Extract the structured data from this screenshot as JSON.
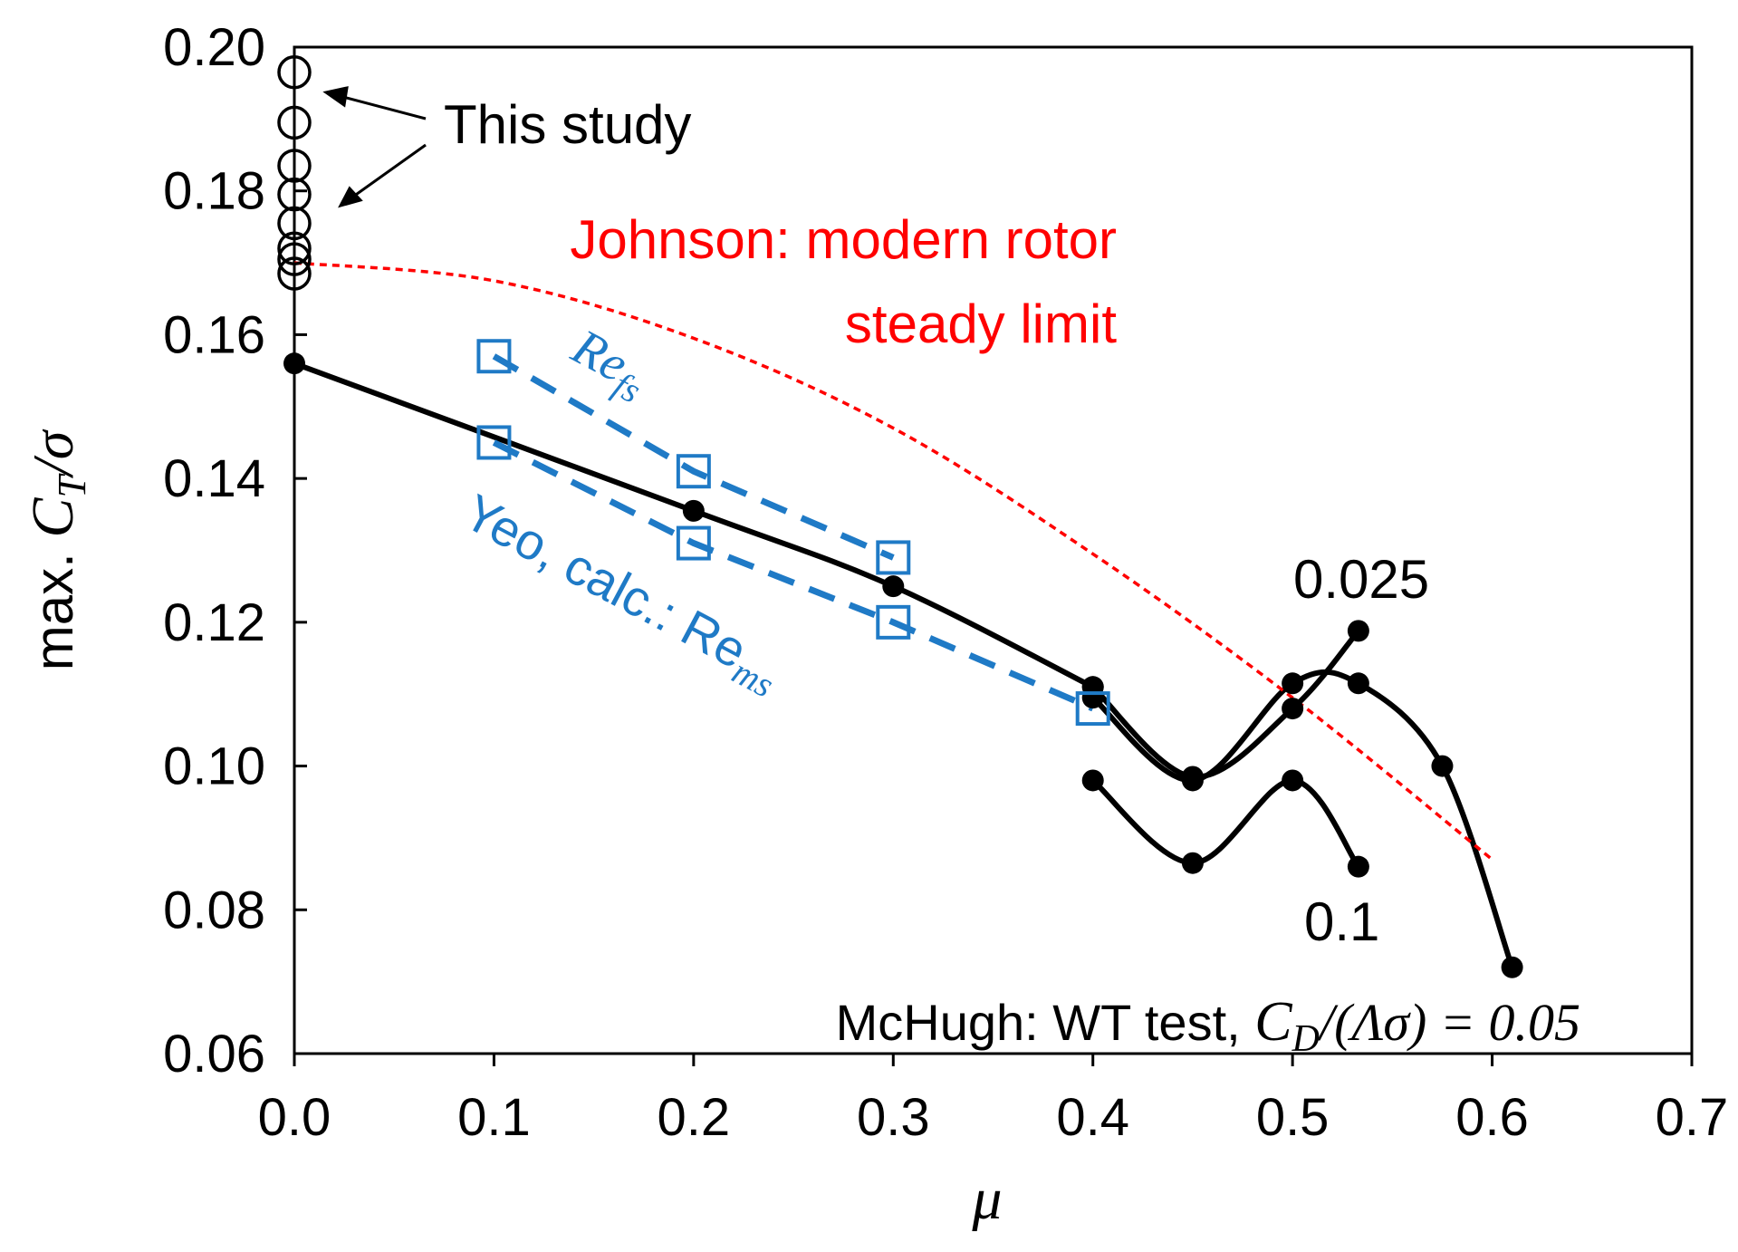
{
  "chart_data": {
    "type": "line",
    "xlabel": "μ",
    "ylabel": "max. C_T/σ",
    "xlim": [
      0.0,
      0.7
    ],
    "ylim": [
      0.06,
      0.2
    ],
    "xticks": [
      "0.0",
      "0.1",
      "0.2",
      "0.3",
      "0.4",
      "0.5",
      "0.6",
      "0.7"
    ],
    "yticks": [
      "0.06",
      "0.08",
      "0.10",
      "0.12",
      "0.14",
      "0.16",
      "0.18",
      "0.20"
    ],
    "grid": false,
    "series": [
      {
        "label": "McHugh main",
        "style": "black-solid-filled-circle",
        "color": "#000000",
        "points": [
          [
            0.0,
            0.156
          ],
          [
            0.2,
            0.1355
          ],
          [
            0.3,
            0.125
          ],
          [
            0.4,
            0.111
          ]
        ]
      },
      {
        "label": "0.025",
        "style": "black-solid-filled-circle",
        "color": "#000000",
        "points": [
          [
            0.4,
            0.111
          ],
          [
            0.45,
            0.0985
          ],
          [
            0.5,
            0.108
          ],
          [
            0.533,
            0.1188
          ]
        ]
      },
      {
        "label": "0.05",
        "style": "black-solid-filled-circle",
        "color": "#000000",
        "points": [
          [
            0.4,
            0.1095
          ],
          [
            0.45,
            0.098
          ],
          [
            0.5,
            0.1115
          ],
          [
            0.533,
            0.1115
          ],
          [
            0.575,
            0.1
          ],
          [
            0.61,
            0.072
          ]
        ]
      },
      {
        "label": "0.1",
        "style": "black-solid-filled-circle",
        "color": "#000000",
        "points": [
          [
            0.4,
            0.098
          ],
          [
            0.45,
            0.0865
          ],
          [
            0.5,
            0.098
          ],
          [
            0.533,
            0.086
          ]
        ]
      },
      {
        "label": "Yeo Re_fs",
        "style": "blue-dashed-open-square",
        "color": "#1f7ac6",
        "points": [
          [
            0.1,
            0.157
          ],
          [
            0.2,
            0.141
          ],
          [
            0.3,
            0.129
          ]
        ]
      },
      {
        "label": "Yeo Re_ms",
        "style": "blue-dashed-open-square",
        "color": "#1f7ac6",
        "points": [
          [
            0.1,
            0.145
          ],
          [
            0.2,
            0.131
          ],
          [
            0.3,
            0.12
          ],
          [
            0.4,
            0.108
          ]
        ]
      },
      {
        "label": "Johnson steady limit",
        "style": "red-dotted",
        "color": "#ff0000",
        "points": [
          [
            0.0,
            0.17
          ],
          [
            0.1,
            0.1675
          ],
          [
            0.2,
            0.1595
          ],
          [
            0.3,
            0.147
          ],
          [
            0.4,
            0.1295
          ],
          [
            0.5,
            0.1095
          ],
          [
            0.6,
            0.087
          ]
        ]
      },
      {
        "label": "This study",
        "style": "black-open-circle",
        "color": "#000000",
        "points": [
          [
            0.0,
            0.1965
          ],
          [
            0.0,
            0.1895
          ],
          [
            0.0,
            0.1835
          ],
          [
            0.0,
            0.1795
          ],
          [
            0.0,
            0.1755
          ],
          [
            0.0,
            0.172
          ],
          [
            0.0,
            0.1705
          ],
          [
            0.0,
            0.1685
          ]
        ]
      }
    ],
    "annotations": {
      "this_study": "This study",
      "johnson_1": "Johnson: modern rotor",
      "johnson_2": "steady limit",
      "refs": "Re",
      "refs_sub": "fs",
      "yeo": "Yeo, calc.: Re",
      "yeo_sub": "ms",
      "label_0025": "0.025",
      "label_01": "0.1",
      "mchugh_prefix": "McHugh: WT test, ",
      "mchugh_math": "C",
      "mchugh_math_sub": "D",
      "mchugh_math_rest": "/(Λσ) = 0.05"
    },
    "ylabel_parts": {
      "prefix": "max. ",
      "C": "C",
      "sub": "T",
      "rest": "/σ"
    }
  }
}
